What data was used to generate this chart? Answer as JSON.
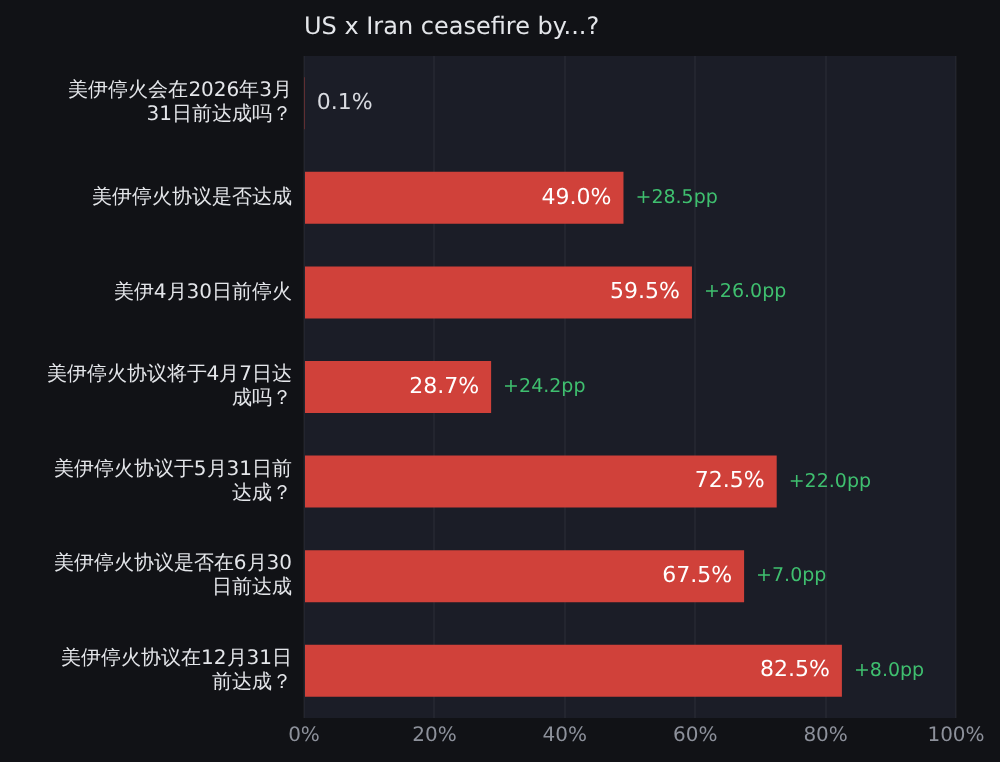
{
  "chart_data": {
    "type": "bar",
    "orientation": "horizontal",
    "title": "US x Iran ceasefire by...?",
    "categories": [
      "美伊停火会在2026年3月31日前达成吗？",
      "美伊停火协议是否达成",
      "美伊4月30日前停火",
      "美伊停火协议将于4月7日达成吗？",
      "美伊停火协议于5月31日前达成？",
      "美伊停火协议是否在6月30日前达成",
      "美伊停火协议在12月31日前达成？"
    ],
    "values": [
      0.1,
      49.0,
      59.5,
      28.7,
      72.5,
      67.5,
      82.5
    ],
    "value_labels": [
      "0.1%",
      "49.0%",
      "59.5%",
      "28.7%",
      "72.5%",
      "67.5%",
      "82.5%"
    ],
    "color": "#d0413a",
    "xlim": [
      0,
      100
    ],
    "xticks": [
      {
        "value": 0,
        "label": "0%"
      },
      {
        "value": 20,
        "label": "20%"
      },
      {
        "value": 40,
        "label": "40%"
      },
      {
        "value": 60,
        "label": "60%"
      },
      {
        "value": 80,
        "label": "80%"
      },
      {
        "value": 100,
        "label": "100%"
      }
    ],
    "grid": "x",
    "annotations": [
      {
        "text": "+28.5pp",
        "x": 49.0,
        "y": "美伊停火协议是否达成"
      },
      {
        "text": "+26.0pp",
        "x": 59.5,
        "y": "美伊4月30日前停火"
      },
      {
        "text": "+24.2pp",
        "x": 28.7,
        "y": "美伊停火协议将于4月7日达成吗？"
      },
      {
        "text": "+22.0pp",
        "x": 72.5,
        "y": "美伊停火协议于5月31日前达成？"
      },
      {
        "text": "+7.0pp",
        "x": 67.5,
        "y": "美伊停火协议是否在6月30日前达成"
      },
      {
        "text": "+8.0pp",
        "x": 82.5,
        "y": "美伊停火协议在12月31日前达成？"
      }
    ]
  }
}
